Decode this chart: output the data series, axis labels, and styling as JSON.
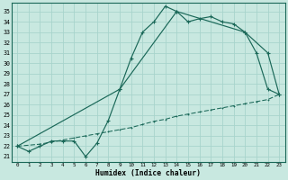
{
  "xlabel": "Humidex (Indice chaleur)",
  "bg_color": "#c8e8e0",
  "grid_color": "#a8d4cc",
  "line_color": "#1a6858",
  "x_ticks": [
    0,
    1,
    2,
    3,
    4,
    5,
    6,
    7,
    8,
    9,
    10,
    11,
    12,
    13,
    14,
    15,
    16,
    17,
    18,
    19,
    20,
    21,
    22,
    23
  ],
  "y_ticks": [
    21,
    22,
    23,
    24,
    25,
    26,
    27,
    28,
    29,
    30,
    31,
    32,
    33,
    34,
    35
  ],
  "ylim": [
    20.5,
    35.8
  ],
  "xlim": [
    -0.5,
    23.5
  ],
  "curve1_x": [
    0,
    1,
    2,
    3,
    4,
    5,
    6,
    7,
    8,
    9,
    10,
    11,
    12,
    13,
    14,
    15,
    16,
    17,
    18,
    19,
    20,
    21,
    22,
    23
  ],
  "curve1_y": [
    22.0,
    21.5,
    22.0,
    22.5,
    22.5,
    22.5,
    21.0,
    22.3,
    24.5,
    27.5,
    30.5,
    33.0,
    34.0,
    35.5,
    35.0,
    34.0,
    34.3,
    34.5,
    34.0,
    33.8,
    33.0,
    31.0,
    27.5,
    27.0
  ],
  "curve2_x": [
    0,
    9,
    14,
    20,
    22,
    23
  ],
  "curve2_y": [
    22.0,
    27.5,
    35.0,
    33.0,
    31.0,
    27.0
  ],
  "curve3_x": [
    0,
    2,
    3,
    4,
    5,
    6,
    7,
    8,
    9,
    10,
    11,
    12,
    13,
    14,
    15,
    16,
    17,
    18,
    19,
    20,
    21,
    22,
    23
  ],
  "curve3_y": [
    22.0,
    22.2,
    22.4,
    22.6,
    22.8,
    23.0,
    23.2,
    23.4,
    23.6,
    23.8,
    24.1,
    24.4,
    24.6,
    24.9,
    25.1,
    25.3,
    25.5,
    25.7,
    25.9,
    26.1,
    26.3,
    26.5,
    27.0
  ]
}
